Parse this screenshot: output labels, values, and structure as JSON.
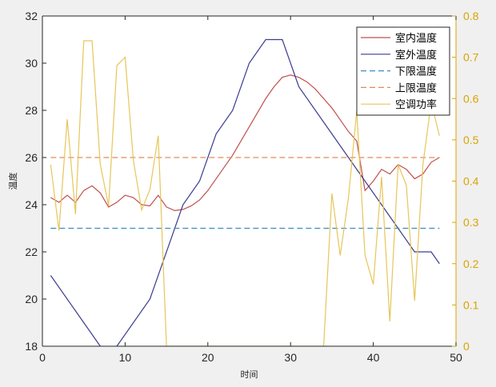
{
  "chart_data": {
    "type": "line",
    "title": "",
    "xlabel": "时间",
    "ylabel_left": "温度",
    "ylabel_right": "",
    "xlim": [
      0,
      50
    ],
    "ylim_left": [
      18,
      32
    ],
    "ylim_right": [
      0,
      0.8
    ],
    "x_ticks": [
      0,
      10,
      20,
      30,
      40,
      50
    ],
    "y_ticks_left": [
      18,
      20,
      22,
      24,
      26,
      28,
      30,
      32
    ],
    "y_ticks_right": [
      0,
      0.1,
      0.2,
      0.3,
      0.4,
      0.5,
      0.6,
      0.7,
      0.8
    ],
    "grid": false,
    "legend_position": "top-right",
    "axis_color": "#262626",
    "right_axis_color": "#d9a400",
    "series": [
      {
        "name": "室内温度",
        "axis": "left",
        "style": "solid",
        "color": "#c0504d",
        "x": [
          1,
          2,
          3,
          4,
          5,
          6,
          7,
          8,
          9,
          10,
          11,
          12,
          13,
          14,
          15,
          16,
          17,
          18,
          19,
          20,
          21,
          22,
          23,
          24,
          25,
          26,
          27,
          28,
          29,
          30,
          31,
          32,
          33,
          34,
          35,
          36,
          37,
          38,
          39,
          40,
          41,
          42,
          43,
          44,
          45,
          46,
          47,
          48
        ],
        "y": [
          24.3,
          24.1,
          24.4,
          24.1,
          24.6,
          24.8,
          24.5,
          23.9,
          24.1,
          24.4,
          24.3,
          24.0,
          23.95,
          24.4,
          23.9,
          23.75,
          23.8,
          23.95,
          24.2,
          24.6,
          25.1,
          25.6,
          26.1,
          26.7,
          27.3,
          27.9,
          28.5,
          29.0,
          29.4,
          29.5,
          29.4,
          29.2,
          28.9,
          28.5,
          28.1,
          27.6,
          27.1,
          26.7,
          24.6,
          25.0,
          25.5,
          25.3,
          25.7,
          25.5,
          25.1,
          25.3,
          25.8,
          26.0
        ]
      },
      {
        "name": "室外温度",
        "axis": "left",
        "style": "solid",
        "color": "#3a3c8f",
        "x": [
          1,
          4,
          7,
          8,
          9,
          13,
          17,
          19,
          21,
          23,
          25,
          27,
          29,
          31,
          33,
          35,
          37,
          39,
          41,
          43,
          45,
          47,
          48
        ],
        "y": [
          21.0,
          19.5,
          18.0,
          17.5,
          18.0,
          20.0,
          24.0,
          25.0,
          27.0,
          28.0,
          30.0,
          31.0,
          31.0,
          29.0,
          28.0,
          27.0,
          26.0,
          25.0,
          24.0,
          23.0,
          22.0,
          22.0,
          21.5
        ]
      },
      {
        "name": "下限温度",
        "axis": "left",
        "style": "dashed",
        "color": "#3b8fbf",
        "x": [
          1,
          48
        ],
        "y": [
          23,
          23
        ]
      },
      {
        "name": "上限温度",
        "axis": "left",
        "style": "dashed",
        "color": "#e08a5a",
        "x": [
          1,
          48
        ],
        "y": [
          26,
          26
        ]
      },
      {
        "name": "空调功率",
        "axis": "right",
        "style": "solid",
        "color": "#e6c65a",
        "x": [
          1,
          2,
          3,
          4,
          5,
          6,
          7,
          8,
          9,
          10,
          11,
          12,
          13,
          14,
          15,
          16,
          17,
          18,
          19,
          20,
          21,
          22,
          23,
          24,
          25,
          26,
          27,
          28,
          29,
          30,
          31,
          32,
          33,
          34,
          35,
          36,
          37,
          38,
          39,
          40,
          41,
          42,
          43,
          44,
          45,
          46,
          47,
          48
        ],
        "y": [
          0.44,
          0.28,
          0.55,
          0.32,
          0.74,
          0.74,
          0.44,
          0.34,
          0.68,
          0.7,
          0.45,
          0.33,
          0.38,
          0.51,
          0,
          0,
          0,
          0,
          0,
          0,
          0,
          0,
          0,
          0,
          0,
          0,
          0,
          0,
          0,
          0,
          0,
          0,
          0,
          0,
          0.37,
          0.22,
          0.36,
          0.57,
          0.22,
          0.15,
          0.41,
          0.06,
          0.44,
          0.39,
          0.11,
          0.44,
          0.59,
          0.51
        ]
      }
    ]
  }
}
